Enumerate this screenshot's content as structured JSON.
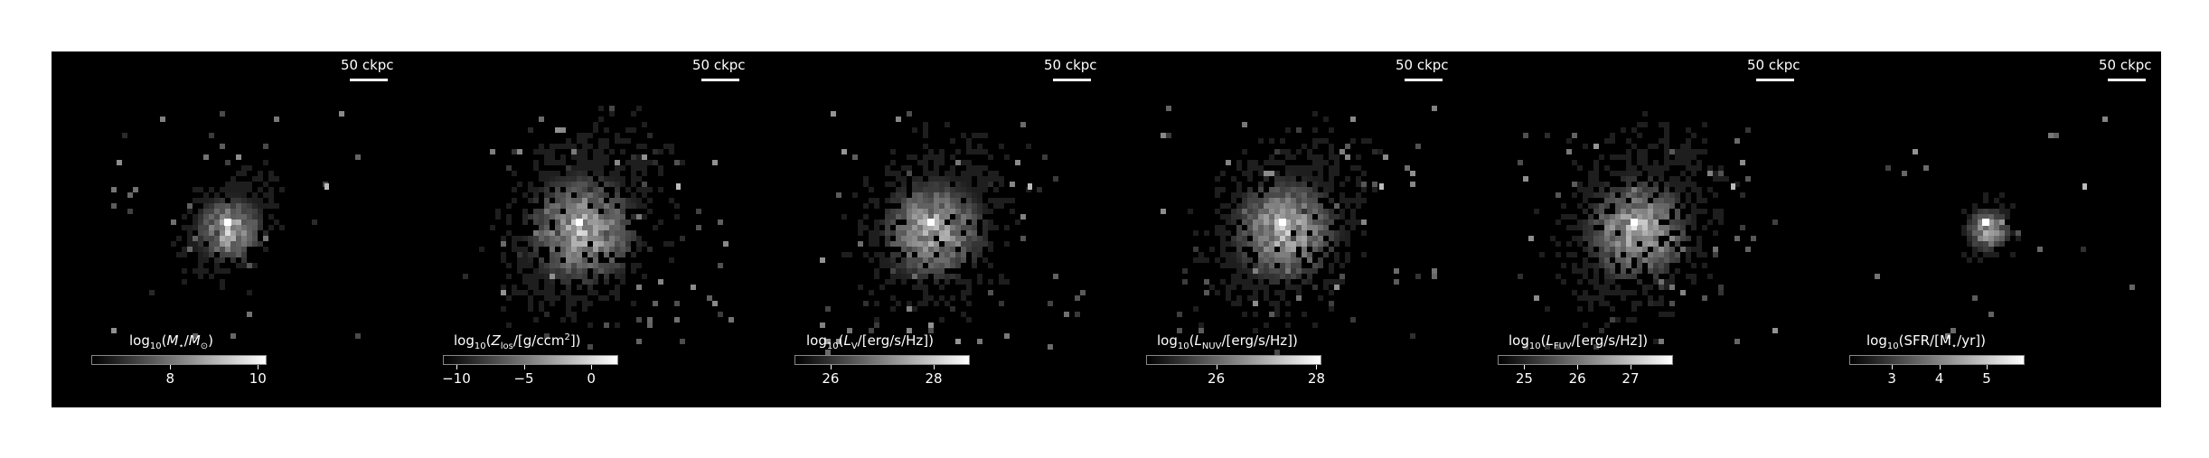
{
  "figure": {
    "panels": [
      {
        "id": "stellar-mass",
        "scale_label": "50 ckpc",
        "colorbar": {
          "label_parts": [
            "log",
            "10",
            "(",
            "M",
            "⋆",
            "/",
            "M",
            "⊙",
            ")"
          ],
          "ticks": [
            "8",
            "10"
          ],
          "tick_values": [
            8,
            10
          ],
          "range": [
            6.2,
            10.2
          ]
        },
        "spread": 0.55
      },
      {
        "id": "metallicity",
        "scale_label": "50 ckpc",
        "colorbar": {
          "label_parts": [
            "log",
            "10",
            "(",
            "Z",
            "los",
            "/[g/ccm",
            "2",
            "])"
          ],
          "ticks": [
            "−10",
            "−5",
            "0"
          ],
          "tick_values": [
            -10,
            -5,
            0
          ],
          "range": [
            -11,
            2
          ]
        },
        "spread": 1.0
      },
      {
        "id": "v-luminosity",
        "scale_label": "50 ckpc",
        "colorbar": {
          "label_parts": [
            "log",
            "10",
            "(",
            "L",
            "V",
            "/[erg/s/Hz])"
          ],
          "ticks": [
            "26",
            "28"
          ],
          "tick_values": [
            26,
            28
          ],
          "range": [
            25.3,
            28.7
          ]
        },
        "spread": 0.9
      },
      {
        "id": "nuv-luminosity",
        "scale_label": "50 ckpc",
        "colorbar": {
          "label_parts": [
            "log",
            "10",
            "(",
            "L",
            "NUV",
            "/[erg/s/Hz])"
          ],
          "ticks": [
            "26",
            "28"
          ],
          "tick_values": [
            26,
            28
          ],
          "range": [
            24.6,
            28.1
          ]
        },
        "spread": 0.95
      },
      {
        "id": "fuv-luminosity",
        "scale_label": "50 ckpc",
        "colorbar": {
          "label_parts": [
            "log",
            "10",
            "(",
            "L",
            "FUV",
            "/[erg/s/Hz])"
          ],
          "ticks": [
            "25",
            "26",
            "27"
          ],
          "tick_values": [
            25,
            26,
            27
          ],
          "range": [
            24.5,
            27.8
          ]
        },
        "spread": 0.95
      },
      {
        "id": "sfr",
        "scale_label": "50 ckpc",
        "colorbar": {
          "label_parts": [
            "log",
            "10",
            "(SFR/[M",
            "⋆",
            "/yr])"
          ],
          "ticks": [
            "3",
            "4",
            "5"
          ],
          "tick_values": [
            3,
            4,
            5
          ],
          "range": [
            2.1,
            5.8
          ]
        },
        "spread": 0.3
      }
    ]
  }
}
